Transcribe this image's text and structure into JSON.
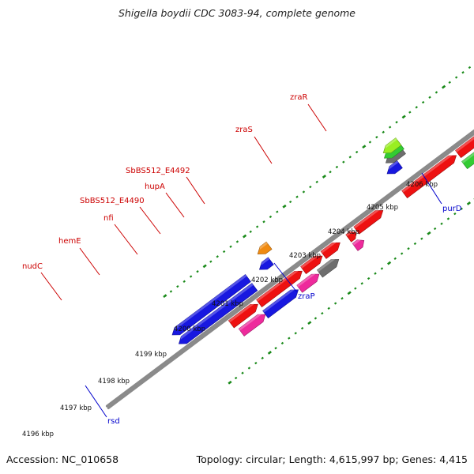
{
  "title": "Shigella boydii CDC 3083-94, complete genome",
  "footer": {
    "accession": "Accession: NC_010658",
    "topology": "Topology: circular; Length: 4,615,997 bp; Genes: 4,415"
  },
  "colors": {
    "background": "#ffffff",
    "backbone": "#8a8a8a",
    "tick": "#1a8a1a",
    "forward_label": "#cc0000",
    "reverse_label": "#0000cc",
    "red": "#ee1111",
    "blue": "#1818e0",
    "magenta": "#ee2a9c",
    "gray": "#6e6e6e",
    "green": "#33cc33",
    "cyan": "#20b8f0",
    "orange": "#f08a10",
    "lime": "#99ee22"
  },
  "scale_labels": [
    "4196 kbp",
    "4197 kbp",
    "4198 kbp",
    "4199 kbp",
    "4200 kbp",
    "4201 kbp",
    "4202 kbp",
    "4203 kbp",
    "4204 kbp",
    "4205 kbp",
    "4206 kbp"
  ],
  "gene_labels": [
    {
      "text": "nudC",
      "strand": "forward"
    },
    {
      "text": "hemE",
      "strand": "forward"
    },
    {
      "text": "nfi",
      "strand": "forward"
    },
    {
      "text": "SbBS512_E4490",
      "strand": "forward"
    },
    {
      "text": "hupA",
      "strand": "forward"
    },
    {
      "text": "SbBS512_E4492",
      "strand": "forward"
    },
    {
      "text": "zraS",
      "strand": "forward"
    },
    {
      "text": "zraR",
      "strand": "forward"
    },
    {
      "text": "rsd",
      "strand": "reverse"
    },
    {
      "text": "zraP",
      "strand": "reverse"
    },
    {
      "text": "purD",
      "strand": "reverse"
    }
  ]
}
